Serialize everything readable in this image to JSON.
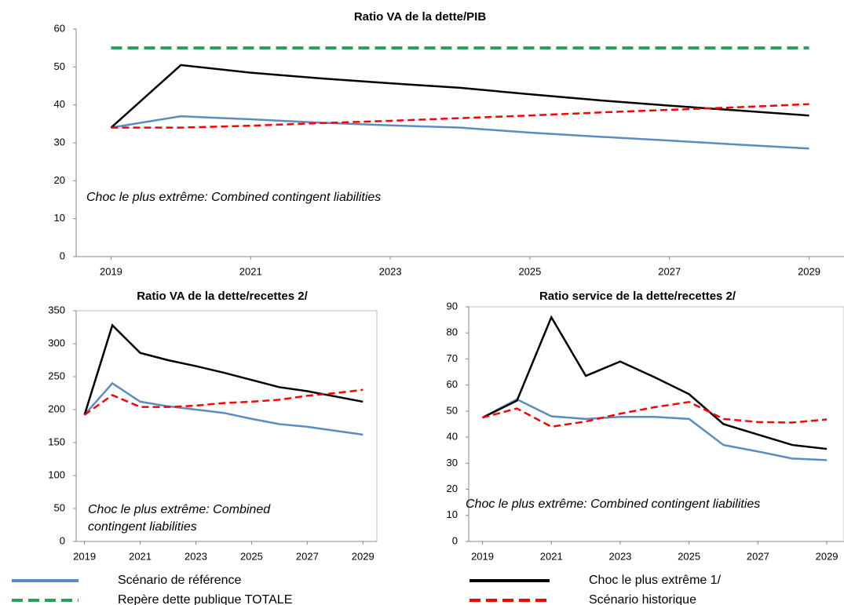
{
  "chart_data": [
    {
      "type": "line",
      "title": "Ratio VA de la dette/PIB",
      "x": [
        2019,
        2020,
        2021,
        2022,
        2023,
        2024,
        2025,
        2026,
        2027,
        2028,
        2029
      ],
      "xlim": [
        2018.5,
        2029.5
      ],
      "xticks": [
        2019,
        2021,
        2023,
        2025,
        2027,
        2029
      ],
      "ylim": [
        0,
        60
      ],
      "yticks": [
        0,
        10,
        20,
        30,
        40,
        50,
        60
      ],
      "annotation": [
        "Choc le plus extrême: Combined contingent liabilities"
      ],
      "series": [
        {
          "name": "Scénario de référence",
          "color": "#5b8cc0",
          "dash": false,
          "values": [
            34,
            37,
            36.2,
            35.3,
            34.6,
            34,
            32.7,
            31.6,
            30.6,
            29.5,
            28.5
          ]
        },
        {
          "name": "Choc le plus extrême 1/",
          "color": "#000000",
          "dash": false,
          "values": [
            34,
            50.5,
            48.5,
            47,
            45.7,
            44.5,
            42.8,
            41.2,
            39.8,
            38.5,
            37.2
          ]
        },
        {
          "name": "Scénario historique",
          "color": "#ff0000",
          "dash": true,
          "values": [
            34,
            34,
            34.5,
            35.2,
            35.8,
            36.5,
            37.2,
            38,
            38.7,
            39.4,
            40.2
          ]
        },
        {
          "name": "Repère dette publique TOTALE",
          "color": "#2e9b5c",
          "dash": true,
          "values": [
            55,
            55,
            55,
            55,
            55,
            55,
            55,
            55,
            55,
            55,
            55
          ]
        }
      ]
    },
    {
      "type": "line",
      "title": "Ratio VA de la dette/recettes 2/",
      "x": [
        2019,
        2020,
        2021,
        2022,
        2023,
        2024,
        2025,
        2026,
        2027,
        2028,
        2029
      ],
      "xlim": [
        2018.7,
        2029.5
      ],
      "xticks": [
        2019,
        2021,
        2023,
        2025,
        2027,
        2029
      ],
      "ylim": [
        0,
        350
      ],
      "yticks": [
        0,
        50,
        100,
        150,
        200,
        250,
        300,
        350
      ],
      "annotation": [
        "Choc le plus extrême: Combined",
        "contingent liabilities"
      ],
      "series": [
        {
          "name": "Scénario de référence",
          "color": "#5b8cc0",
          "dash": false,
          "values": [
            192,
            240,
            212,
            205,
            200,
            195,
            186,
            178,
            174,
            168,
            162
          ]
        },
        {
          "name": "Choc le plus extrême 1/",
          "color": "#000000",
          "dash": false,
          "values": [
            192,
            328,
            286,
            275,
            266,
            256,
            245,
            234,
            228,
            220,
            212
          ]
        },
        {
          "name": "Scénario historique",
          "color": "#ff0000",
          "dash": true,
          "values": [
            192,
            222,
            204,
            204,
            206,
            210,
            212,
            215,
            221,
            225,
            230
          ]
        }
      ]
    },
    {
      "type": "line",
      "title": "Ratio service de la dette/recettes 2/",
      "x": [
        2019,
        2020,
        2021,
        2022,
        2023,
        2024,
        2025,
        2026,
        2027,
        2028,
        2029
      ],
      "xlim": [
        2018.6,
        2029.5
      ],
      "xticks": [
        2019,
        2021,
        2023,
        2025,
        2027,
        2029
      ],
      "ylim": [
        0,
        90
      ],
      "yticks": [
        0,
        10,
        20,
        30,
        40,
        50,
        60,
        70,
        80,
        90
      ],
      "annotation": [
        "Choc le plus extrême: Combined contingent liabilities"
      ],
      "series": [
        {
          "name": "Scénario de référence",
          "color": "#5b8cc0",
          "dash": false,
          "values": [
            47.5,
            54.5,
            48,
            47,
            47.8,
            47.8,
            47,
            37,
            34.5,
            31.8,
            31.2
          ]
        },
        {
          "name": "Choc le plus extrême 1/",
          "color": "#000000",
          "dash": false,
          "values": [
            47.5,
            54,
            86,
            63.5,
            69,
            63,
            56.5,
            45,
            41,
            37,
            35.5
          ]
        },
        {
          "name": "Scénario historique",
          "color": "#ff0000",
          "dash": true,
          "values": [
            47.5,
            51,
            44,
            46,
            49,
            51.5,
            53.5,
            47,
            45.8,
            45.6,
            46.8
          ]
        }
      ]
    }
  ]
}
